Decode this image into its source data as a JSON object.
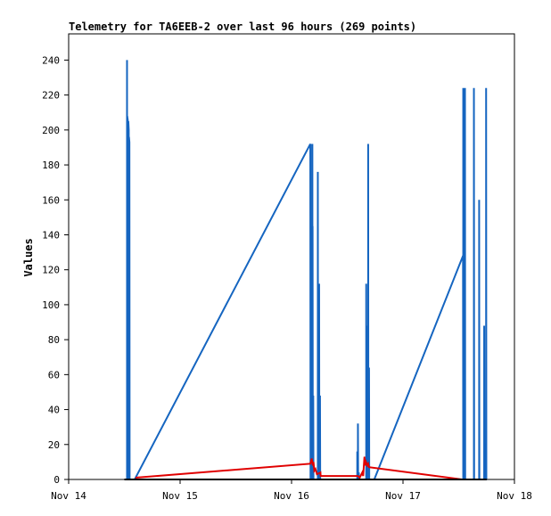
{
  "chart_data": {
    "type": "line",
    "title": "Telemetry for TA6EEB-2 over last 96 hours (269 points)",
    "xlabel": "",
    "ylabel": "Values",
    "x_ticks": [
      "Nov 14",
      "Nov 15",
      "Nov 16",
      "Nov 17",
      "Nov 18"
    ],
    "x_domain_days": [
      14,
      18
    ],
    "y_ticks": [
      0,
      20,
      40,
      60,
      80,
      100,
      120,
      140,
      160,
      180,
      200,
      220,
      240
    ],
    "ylim": [
      0,
      255
    ],
    "grid": false,
    "colors": {
      "blue": "#1565c0",
      "red": "#e00000",
      "black": "#000000"
    },
    "series": [
      {
        "color": "#1565c0",
        "points": [
          [
            14.5238,
            0
          ],
          [
            14.5238,
            240
          ],
          [
            14.5253,
            0
          ],
          [
            14.5253,
            208
          ],
          [
            14.532,
            205
          ],
          [
            14.5355,
            0
          ],
          [
            14.5355,
            205
          ],
          [
            14.5393,
            200
          ],
          [
            14.5413,
            0
          ],
          [
            14.5413,
            196
          ],
          [
            14.5452,
            193
          ],
          [
            14.5472,
            0
          ],
          [
            14.5923,
            0
          ],
          [
            16.1683,
            192
          ],
          [
            16.1703,
            0
          ],
          [
            16.1703,
            192
          ],
          [
            16.1722,
            0
          ],
          [
            16.1791,
            0
          ],
          [
            16.1791,
            112
          ],
          [
            16.1811,
            0
          ],
          [
            16.1869,
            0
          ],
          [
            16.1869,
            192
          ],
          [
            16.1889,
            0
          ],
          [
            16.1889,
            145
          ],
          [
            16.1908,
            0
          ],
          [
            16.1947,
            0
          ],
          [
            16.1947,
            48
          ],
          [
            16.1967,
            0
          ],
          [
            16.2358,
            0
          ],
          [
            16.2358,
            176
          ],
          [
            16.2377,
            0
          ],
          [
            16.2475,
            0
          ],
          [
            16.2475,
            112
          ],
          [
            16.2494,
            0
          ],
          [
            16.2553,
            0
          ],
          [
            16.2553,
            48
          ],
          [
            16.2572,
            0
          ],
          [
            16.5897,
            0
          ],
          [
            16.5897,
            16
          ],
          [
            16.5917,
            0
          ],
          [
            16.5956,
            0
          ],
          [
            16.5956,
            32
          ],
          [
            16.5975,
            0
          ],
          [
            16.6034,
            0
          ],
          [
            16.6034,
            4
          ],
          [
            16.6054,
            0
          ],
          [
            16.6699,
            0
          ],
          [
            16.6699,
            112
          ],
          [
            16.6718,
            0
          ],
          [
            16.6796,
            0
          ],
          [
            16.6796,
            88
          ],
          [
            16.6816,
            0
          ],
          [
            16.6875,
            0
          ],
          [
            16.6875,
            192
          ],
          [
            16.6894,
            0
          ],
          [
            16.6953,
            0
          ],
          [
            16.6953,
            64
          ],
          [
            16.6972,
            0
          ],
          [
            16.7422,
            0
          ],
          [
            17.5386,
            128
          ],
          [
            17.5405,
            0
          ],
          [
            17.5405,
            224
          ],
          [
            17.5425,
            0
          ],
          [
            17.5562,
            0
          ],
          [
            17.5562,
            224
          ],
          [
            17.5581,
            0
          ],
          [
            17.6363,
            0
          ],
          [
            17.6363,
            224
          ],
          [
            17.6383,
            0
          ],
          [
            17.6832,
            0
          ],
          [
            17.6832,
            160
          ],
          [
            17.6852,
            0
          ],
          [
            17.7282,
            0
          ],
          [
            17.7282,
            88
          ],
          [
            17.7302,
            0
          ],
          [
            17.7458,
            0
          ],
          [
            17.7458,
            224
          ],
          [
            17.7478,
            0
          ]
        ]
      },
      {
        "color": "#e00000",
        "points": [
          [
            14.6,
            1
          ],
          [
            16.1683,
            9
          ],
          [
            16.1811,
            12
          ],
          [
            16.1908,
            8
          ],
          [
            16.1967,
            10
          ],
          [
            16.2045,
            5
          ],
          [
            16.2143,
            6
          ],
          [
            16.2279,
            3
          ],
          [
            16.2592,
            4
          ],
          [
            16.2611,
            2
          ],
          [
            16.5956,
            2
          ],
          [
            16.6112,
            1
          ],
          [
            16.6347,
            4
          ],
          [
            16.6425,
            2
          ],
          [
            16.6542,
            13
          ],
          [
            16.6601,
            8
          ],
          [
            16.6679,
            10
          ],
          [
            16.6796,
            8
          ],
          [
            16.6875,
            9
          ],
          [
            16.6953,
            7
          ],
          [
            17.5289,
            0
          ]
        ]
      },
      {
        "color": "#000000",
        "points": [
          [
            14.5,
            0
          ],
          [
            17.75,
            0
          ]
        ]
      }
    ]
  }
}
